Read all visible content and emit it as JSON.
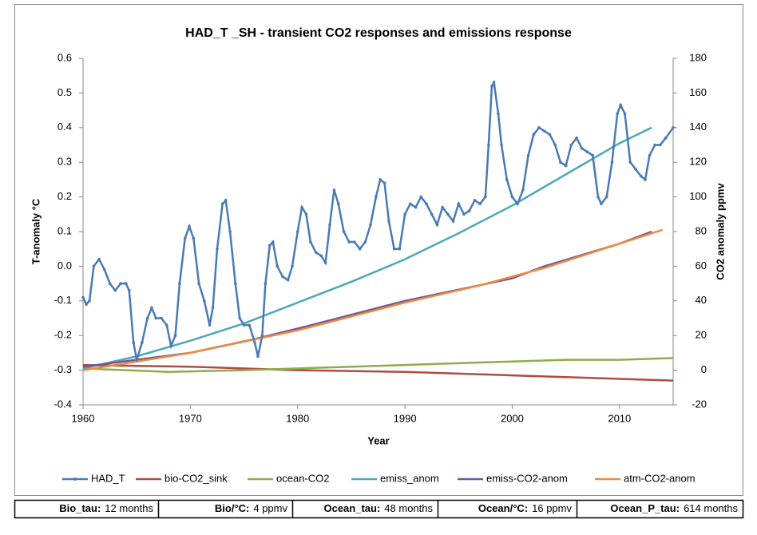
{
  "chart_data": {
    "type": "line",
    "title": "HAD_T _SH - transient CO2 responses and emissions response",
    "xlabel": "Year",
    "ylabel": "T-anomaly °C",
    "y2label": "CO2 anomaly ppmv",
    "xlim": [
      1960,
      2015
    ],
    "xticks": [
      1960,
      1970,
      1980,
      1990,
      2000,
      2010
    ],
    "ylim": [
      -0.4,
      0.6
    ],
    "yticks": [
      -0.4,
      -0.3,
      -0.2,
      -0.1,
      {
        "value": 0,
        "label": "0.0"
      },
      0.1,
      0.2,
      0.3,
      0.4,
      0.5,
      0.6
    ],
    "y2lim": [
      -20,
      180
    ],
    "y2ticks": [
      -20,
      0,
      20,
      40,
      60,
      80,
      100,
      120,
      140,
      160,
      180
    ],
    "series": [
      {
        "name": "HAD_T",
        "color": "#4a7ab5",
        "markers": true,
        "x": [
          1960.0,
          1960.3,
          1960.6,
          1961.0,
          1961.5,
          1962.0,
          1962.5,
          1963.0,
          1963.5,
          1964.0,
          1964.3,
          1964.7,
          1965.0,
          1965.5,
          1966.0,
          1966.4,
          1966.8,
          1967.3,
          1967.8,
          1968.2,
          1968.6,
          1969.0,
          1969.5,
          1969.9,
          1970.3,
          1970.8,
          1971.3,
          1971.8,
          1972.1,
          1972.5,
          1973.0,
          1973.3,
          1973.7,
          1974.2,
          1974.6,
          1975.0,
          1975.5,
          1976.0,
          1976.3,
          1976.7,
          1977.0,
          1977.4,
          1977.7,
          1978.1,
          1978.6,
          1979.1,
          1979.5,
          1980.0,
          1980.4,
          1980.8,
          1981.2,
          1981.7,
          1982.2,
          1982.6,
          1983.0,
          1983.4,
          1983.8,
          1984.3,
          1984.8,
          1985.3,
          1985.8,
          1986.3,
          1986.8,
          1987.3,
          1987.7,
          1988.1,
          1988.5,
          1989.0,
          1989.5,
          1990.0,
          1990.5,
          1991.0,
          1991.5,
          1992.0,
          1992.5,
          1993.0,
          1993.5,
          1994.0,
          1994.5,
          1995.0,
          1995.5,
          1996.0,
          1996.5,
          1997.0,
          1997.5,
          1997.8,
          1998.1,
          1998.3,
          1998.7,
          1999.0,
          1999.5,
          2000.0,
          2000.5,
          2001.0,
          2001.5,
          2002.0,
          2002.5,
          2003.0,
          2003.5,
          2004.0,
          2004.5,
          2005.0,
          2005.5,
          2006.0,
          2006.5,
          2007.0,
          2007.5,
          2008.0,
          2008.3,
          2008.8,
          2009.3,
          2009.8,
          2010.1,
          2010.5,
          2011.0,
          2011.5,
          2012.0,
          2012.4,
          2012.8,
          2013.3,
          2013.8,
          2014.3,
          2015.0
        ],
        "values": [
          -0.09,
          -0.11,
          -0.1,
          0.0,
          0.02,
          -0.01,
          -0.05,
          -0.07,
          -0.05,
          -0.05,
          -0.07,
          -0.22,
          -0.27,
          -0.22,
          -0.15,
          -0.12,
          -0.15,
          -0.15,
          -0.17,
          -0.23,
          -0.2,
          -0.05,
          0.08,
          0.115,
          0.08,
          -0.05,
          -0.1,
          -0.17,
          -0.12,
          0.05,
          0.18,
          0.19,
          0.1,
          -0.05,
          -0.15,
          -0.17,
          -0.17,
          -0.22,
          -0.26,
          -0.2,
          -0.05,
          0.06,
          0.07,
          0.0,
          -0.03,
          -0.04,
          0.0,
          0.1,
          0.17,
          0.15,
          0.07,
          0.04,
          0.03,
          0.01,
          0.12,
          0.22,
          0.18,
          0.1,
          0.07,
          0.07,
          0.05,
          0.07,
          0.12,
          0.2,
          0.25,
          0.24,
          0.13,
          0.05,
          0.05,
          0.15,
          0.18,
          0.17,
          0.2,
          0.18,
          0.15,
          0.12,
          0.17,
          0.15,
          0.13,
          0.18,
          0.15,
          0.16,
          0.19,
          0.18,
          0.2,
          0.35,
          0.52,
          0.53,
          0.44,
          0.35,
          0.25,
          0.2,
          0.18,
          0.22,
          0.32,
          0.38,
          0.4,
          0.39,
          0.38,
          0.35,
          0.3,
          0.29,
          0.35,
          0.37,
          0.34,
          0.33,
          0.32,
          0.2,
          0.18,
          0.2,
          0.3,
          0.44,
          0.465,
          0.44,
          0.3,
          0.28,
          0.26,
          0.25,
          0.32,
          0.35,
          0.35,
          0.37,
          0.4
        ]
      },
      {
        "name": "bio-CO2_sink",
        "color": "#b04a45",
        "axis": "y2",
        "x": [
          1960,
          1970,
          1980,
          1990,
          2000,
          2010,
          2015
        ],
        "values": [
          3,
          2,
          0,
          -1,
          -3,
          -5,
          -6
        ]
      },
      {
        "name": "ocean-CO2",
        "color": "#8cae4a",
        "axis": "y2",
        "x": [
          1960,
          1968,
          1975,
          1980,
          1990,
          2000,
          2005,
          2010,
          2015
        ],
        "values": [
          1,
          -1,
          0,
          1,
          3,
          5,
          6,
          6,
          7
        ]
      },
      {
        "name": "emiss_anom",
        "color": "#4aa9b8",
        "axis": "y2",
        "x": [
          1960,
          1965,
          1970,
          1975,
          1980,
          1985,
          1990,
          1995,
          2000,
          2005,
          2010,
          2013
        ],
        "values": [
          1,
          8,
          17,
          27,
          39,
          51,
          64,
          79,
          95,
          113,
          131,
          140
        ]
      },
      {
        "name": "emiss-CO2-anom",
        "color": "#7256a0",
        "axis": "y2",
        "x": [
          1960,
          1970,
          1976,
          1980,
          1990,
          2000,
          2003,
          2010,
          2013
        ],
        "values": [
          2,
          10,
          18,
          24,
          40,
          53,
          60,
          73,
          80
        ]
      },
      {
        "name": "atm-CO2-anom",
        "color": "#ee8a3c",
        "axis": "y2",
        "x": [
          1960,
          1970,
          1980,
          1990,
          1997,
          2003,
          2010,
          2014
        ],
        "values": [
          0,
          10,
          23,
          39,
          49,
          59,
          73,
          81
        ]
      }
    ]
  },
  "params": [
    {
      "label": "Bio_tau:",
      "value": "12 months"
    },
    {
      "label": "Bio/°C:",
      "value": "4 ppmv"
    },
    {
      "label": "Ocean_tau:",
      "value": "48 months"
    },
    {
      "label": "Ocean/°C:",
      "value": "16 ppmv"
    },
    {
      "label": "Ocean_P_tau:",
      "value": "614 months"
    }
  ]
}
